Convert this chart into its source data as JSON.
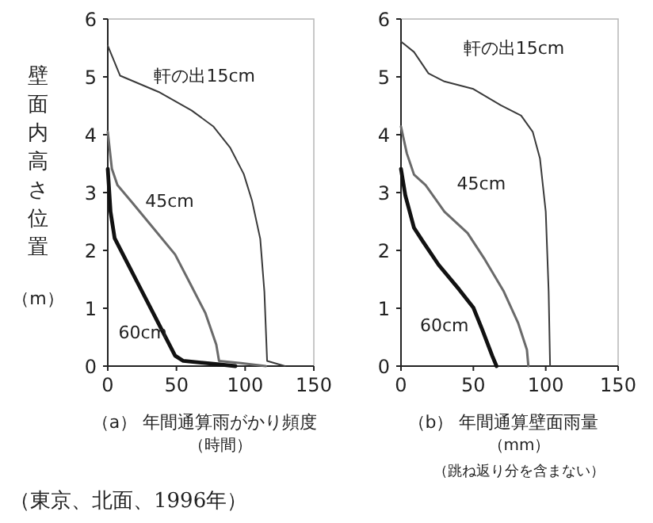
{
  "chart_data": [
    {
      "type": "line",
      "xlabel": "（a） 年間通算雨がかり頻度（時間）",
      "ylabel": "壁面内高さ位置（m）",
      "xlim": [
        0,
        150
      ],
      "xticks": [
        0,
        50,
        100,
        150
      ],
      "ylim": [
        0,
        6
      ],
      "yticks": [
        0,
        1,
        2,
        3,
        4,
        5,
        6
      ],
      "grid": false,
      "series": [
        {
          "name": "軒の出15cm",
          "color": "#3a3a3a",
          "x": [
            0,
            9,
            37,
            61,
            77,
            89,
            99,
            105,
            111,
            114,
            116,
            129
          ],
          "values": [
            5.54,
            5.02,
            4.74,
            4.42,
            4.14,
            3.78,
            3.32,
            2.86,
            2.2,
            1.29,
            0.09,
            0
          ]
        },
        {
          "name": "45cm",
          "color": "#6a6a6a",
          "x": [
            0,
            3,
            7,
            17,
            33,
            49,
            61,
            71,
            79,
            81,
            97,
            115
          ],
          "values": [
            4.05,
            3.41,
            3.13,
            2.85,
            2.39,
            1.93,
            1.38,
            0.92,
            0.37,
            0.09,
            0.05,
            0
          ]
        },
        {
          "name": "60cm",
          "color": "#111111",
          "x": [
            0,
            2,
            5,
            13,
            23,
            33,
            41,
            49,
            55,
            77,
            93
          ],
          "values": [
            3.41,
            2.67,
            2.21,
            1.84,
            1.38,
            0.92,
            0.55,
            0.18,
            0.09,
            0.04,
            0
          ]
        }
      ],
      "annotations": [
        "（東京、北面、1996年）"
      ]
    },
    {
      "type": "line",
      "xlabel": "（b） 年間通算壁面雨量（mm）",
      "xlim": [
        0,
        150
      ],
      "xticks": [
        0,
        50,
        100,
        150
      ],
      "ylim": [
        0,
        6
      ],
      "yticks": [
        0,
        1,
        2,
        3,
        4,
        5,
        6
      ],
      "grid": false,
      "series": [
        {
          "name": "軒の出15cm",
          "color": "#3a3a3a",
          "x": [
            0,
            9,
            19,
            30,
            50,
            69,
            83,
            91,
            96,
            100,
            102,
            103
          ],
          "values": [
            5.61,
            5.43,
            5.06,
            4.92,
            4.79,
            4.51,
            4.33,
            4.05,
            3.59,
            2.67,
            1.29,
            0
          ]
        },
        {
          "name": "45cm",
          "color": "#6a6a6a",
          "x": [
            0,
            4,
            9,
            17,
            30,
            46,
            58,
            71,
            81,
            87,
            88
          ],
          "values": [
            4.14,
            3.68,
            3.31,
            3.13,
            2.67,
            2.3,
            1.84,
            1.29,
            0.74,
            0.28,
            0
          ]
        },
        {
          "name": "60cm",
          "color": "#111111",
          "x": [
            0,
            3,
            9,
            15,
            26,
            40,
            50,
            56,
            63,
            66
          ],
          "values": [
            3.41,
            2.95,
            2.39,
            2.16,
            1.75,
            1.33,
            1.01,
            0.64,
            0.18,
            0
          ]
        }
      ],
      "annotations": [
        "（跳ね返り分を含まない）"
      ]
    }
  ]
}
